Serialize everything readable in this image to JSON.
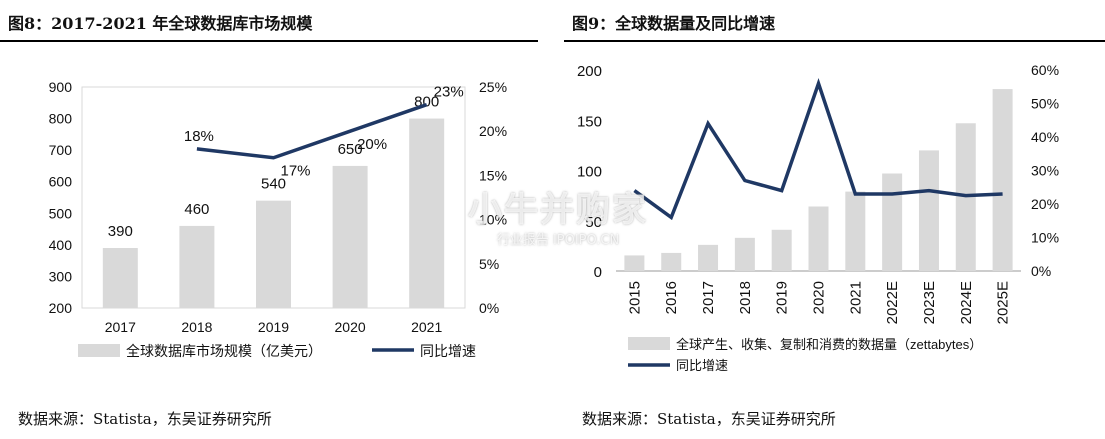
{
  "left": {
    "title": "图8：2017-2021 年全球数据库市场规模",
    "source": "数据来源：Statista，东吴证券研究所"
  },
  "right": {
    "title": "图9：全球数据量及同比增速",
    "source": "数据来源：Statista，东吴证券研究所"
  },
  "watermark": {
    "main": "小牛并购家",
    "sub": "行业报告 IPOIPO.CN"
  },
  "colors": {
    "bar": "#d9d9d9",
    "line": "#1f3864",
    "frame": "#d9d9d9"
  },
  "chart_data": [
    {
      "type": "bar",
      "categories": [
        "2017",
        "2018",
        "2019",
        "2020",
        "2021"
      ],
      "series": [
        {
          "name": "全球数据库市场规模（亿美元）",
          "type": "bar",
          "axis": "left",
          "values": [
            390,
            460,
            540,
            650,
            800
          ],
          "data_labels": [
            "390",
            "460",
            "540",
            "650",
            "800"
          ]
        },
        {
          "name": "同比增速",
          "type": "line",
          "axis": "right",
          "values": [
            null,
            18,
            17,
            20,
            23
          ],
          "data_labels": [
            "",
            "18%",
            "17%",
            "20%",
            "23%"
          ]
        }
      ],
      "ylim": [
        200,
        900
      ],
      "yticks": [
        "200",
        "300",
        "400",
        "500",
        "600",
        "700",
        "800",
        "900"
      ],
      "y2lim": [
        0,
        25
      ],
      "y2ticks": [
        "0%",
        "5%",
        "10%",
        "15%",
        "20%",
        "25%"
      ],
      "legend": "bottom",
      "grid": false
    },
    {
      "type": "bar",
      "categories": [
        "2015",
        "2016",
        "2017",
        "2018",
        "2019",
        "2020",
        "2021",
        "2022E",
        "2023E",
        "2024E",
        "2025E"
      ],
      "series": [
        {
          "name": "全球产生、收集、复制和消费的数据量（zettabytes）",
          "type": "bar",
          "axis": "left",
          "values": [
            15.5,
            18,
            26,
            33,
            41,
            64.2,
            79,
            97,
            120,
            147,
            181
          ]
        },
        {
          "name": "同比增速",
          "type": "line",
          "axis": "right",
          "values": [
            24,
            16,
            44,
            27,
            24,
            56,
            23,
            23,
            24,
            22.5,
            23
          ]
        }
      ],
      "ylim": [
        0,
        200
      ],
      "yticks": [
        "0",
        "50",
        "100",
        "150",
        "200"
      ],
      "y2lim": [
        0,
        60
      ],
      "y2ticks": [
        "0%",
        "10%",
        "20%",
        "30%",
        "40%",
        "50%",
        "60%"
      ],
      "legend": "bottom",
      "grid": false
    }
  ]
}
